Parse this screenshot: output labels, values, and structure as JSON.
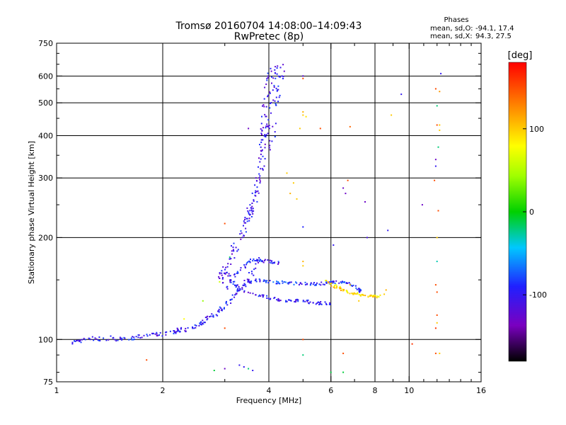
{
  "header": {
    "title_line1": "Tromsø 20160704 14:08:00–14:09:43",
    "title_line2": "RwPretec (8p)"
  },
  "phases_box": {
    "heading": "Phases",
    "o_label": "mean, sd,O:",
    "o_values": "-94.1, 17.4",
    "x_label": "mean, sd,X:",
    "x_values": "94.3, 27.5"
  },
  "colorbar": {
    "label": "[deg]",
    "range": [
      -180,
      180
    ],
    "ticks": [
      {
        "value": 100,
        "label": "100"
      },
      {
        "value": 0,
        "label": "0"
      },
      {
        "value": -100,
        "label": "-100"
      }
    ]
  },
  "chart_data": {
    "type": "scatter",
    "xlabel": "Frequency [MHz]",
    "ylabel": "Stationary phase Virtual Height [km]",
    "x_scale": "log",
    "y_scale": "log",
    "xlim": [
      1,
      16
    ],
    "ylim": [
      75,
      750
    ],
    "grid": true,
    "x_ticks": [
      {
        "value": 1,
        "label": "1"
      },
      {
        "value": 2,
        "label": "2"
      },
      {
        "value": 4,
        "label": "4"
      },
      {
        "value": 6,
        "label": "6"
      },
      {
        "value": 8,
        "label": "8"
      },
      {
        "value": 10,
        "label": "10"
      },
      {
        "value": 16,
        "label": "16"
      }
    ],
    "x_minor": [
      3,
      5,
      7,
      9,
      11,
      12,
      13,
      14,
      15
    ],
    "x_grid": [
      2,
      4,
      6,
      8,
      10
    ],
    "y_ticks": [
      {
        "value": 75,
        "label": "75"
      },
      {
        "value": 100,
        "label": "100"
      },
      {
        "value": 200,
        "label": "200"
      },
      {
        "value": 300,
        "label": "300"
      },
      {
        "value": 400,
        "label": "400"
      },
      {
        "value": 500,
        "label": "500"
      },
      {
        "value": 600,
        "label": "600"
      },
      {
        "value": 750,
        "label": "750"
      }
    ],
    "y_minor": [
      80,
      90,
      150,
      250,
      350,
      450,
      550,
      650,
      700
    ],
    "y_grid": [
      100,
      200,
      300,
      400,
      500,
      600
    ],
    "color_by": "phase_deg",
    "traces": [
      {
        "points": [
          [
            1.1,
            97
          ],
          [
            1.2,
            100
          ],
          [
            1.4,
            101
          ],
          [
            1.6,
            100
          ],
          [
            1.8,
            103
          ],
          [
            2.0,
            104
          ],
          [
            2.2,
            106
          ],
          [
            2.4,
            108
          ],
          [
            2.6,
            112
          ],
          [
            2.8,
            118
          ],
          [
            3.0,
            125
          ],
          [
            3.2,
            135
          ],
          [
            3.5,
            150
          ],
          [
            3.8,
            175
          ]
        ],
        "phase": -100,
        "jitter": 0.03
      },
      {
        "points": [
          [
            2.9,
            150
          ],
          [
            3.0,
            160
          ],
          [
            3.2,
            185
          ],
          [
            3.4,
            210
          ],
          [
            3.5,
            230
          ],
          [
            3.6,
            250
          ],
          [
            3.7,
            280
          ],
          [
            3.8,
            320
          ],
          [
            3.85,
            380
          ],
          [
            3.9,
            430
          ],
          [
            3.95,
            520
          ],
          [
            4.0,
            620
          ]
        ],
        "phase": -105,
        "jitter": 0.05
      },
      {
        "points": [
          [
            3.0,
            140
          ],
          [
            3.3,
            160
          ],
          [
            3.6,
            172
          ],
          [
            4.0,
            170
          ],
          [
            4.3,
            168
          ]
        ],
        "phase": -95,
        "jitter": 0.02
      },
      {
        "points": [
          [
            3.0,
            160
          ],
          [
            3.2,
            145
          ],
          [
            3.5,
            137
          ],
          [
            4.0,
            133
          ],
          [
            4.5,
            130
          ],
          [
            5.0,
            130
          ],
          [
            5.5,
            128
          ],
          [
            6.0,
            128
          ]
        ],
        "phase": -100,
        "jitter": 0.02
      },
      {
        "points": [
          [
            3.2,
            140
          ],
          [
            3.6,
            150
          ],
          [
            4.0,
            148
          ],
          [
            4.5,
            147
          ],
          [
            5.0,
            146
          ],
          [
            5.5,
            146
          ],
          [
            6.0,
            147
          ],
          [
            6.5,
            148
          ],
          [
            7.0,
            143
          ],
          [
            7.3,
            138
          ]
        ],
        "phase": -90,
        "jitter": 0.02
      },
      {
        "points": [
          [
            3.95,
            350
          ],
          [
            4.05,
            420
          ],
          [
            4.15,
            520
          ],
          [
            4.25,
            600
          ],
          [
            4.3,
            630
          ]
        ],
        "phase": -100,
        "jitter": 0.08
      },
      {
        "points": [
          [
            5.8,
            148
          ],
          [
            6.2,
            143
          ],
          [
            6.7,
            138
          ],
          [
            7.2,
            136
          ],
          [
            7.8,
            134
          ],
          [
            8.3,
            134
          ]
        ],
        "phase": 95,
        "jitter": 0.02
      }
    ],
    "scatter_points": [
      {
        "x": 5.0,
        "y": 460,
        "phase": 100
      },
      {
        "x": 5.0,
        "y": 470,
        "phase": 110
      },
      {
        "x": 5.1,
        "y": 455,
        "phase": 90
      },
      {
        "x": 5.0,
        "y": 165,
        "phase": 100
      },
      {
        "x": 5.0,
        "y": 170,
        "phase": 110
      },
      {
        "x": 4.9,
        "y": 420,
        "phase": 100
      },
      {
        "x": 5.6,
        "y": 420,
        "phase": 150
      },
      {
        "x": 6.8,
        "y": 425,
        "phase": 140
      },
      {
        "x": 5.0,
        "y": 600,
        "phase": -120
      },
      {
        "x": 5.0,
        "y": 590,
        "phase": 150
      },
      {
        "x": 4.7,
        "y": 290,
        "phase": 100
      },
      {
        "x": 4.6,
        "y": 270,
        "phase": 110
      },
      {
        "x": 6.5,
        "y": 280,
        "phase": -130
      },
      {
        "x": 6.6,
        "y": 270,
        "phase": -130
      },
      {
        "x": 7.5,
        "y": 255,
        "phase": -130
      },
      {
        "x": 6.7,
        "y": 295,
        "phase": 150
      },
      {
        "x": 5.0,
        "y": 215,
        "phase": -90
      },
      {
        "x": 6.1,
        "y": 190,
        "phase": -100
      },
      {
        "x": 7.6,
        "y": 200,
        "phase": -110
      },
      {
        "x": 8.7,
        "y": 210,
        "phase": -100
      },
      {
        "x": 9.5,
        "y": 530,
        "phase": -100
      },
      {
        "x": 8.9,
        "y": 460,
        "phase": 100
      },
      {
        "x": 10.9,
        "y": 250,
        "phase": -130
      },
      {
        "x": 12.3,
        "y": 610,
        "phase": -100
      },
      {
        "x": 11.9,
        "y": 550,
        "phase": 150
      },
      {
        "x": 12.2,
        "y": 540,
        "phase": 120
      },
      {
        "x": 12.0,
        "y": 490,
        "phase": -20
      },
      {
        "x": 12.0,
        "y": 430,
        "phase": 150
      },
      {
        "x": 12.2,
        "y": 430,
        "phase": 100
      },
      {
        "x": 12.2,
        "y": 415,
        "phase": 100
      },
      {
        "x": 12.1,
        "y": 370,
        "phase": -20
      },
      {
        "x": 11.9,
        "y": 340,
        "phase": -130
      },
      {
        "x": 11.9,
        "y": 325,
        "phase": -100
      },
      {
        "x": 11.8,
        "y": 295,
        "phase": 150
      },
      {
        "x": 12.1,
        "y": 240,
        "phase": 150
      },
      {
        "x": 12.0,
        "y": 200,
        "phase": 100
      },
      {
        "x": 12.0,
        "y": 170,
        "phase": -30
      },
      {
        "x": 11.9,
        "y": 145,
        "phase": 150
      },
      {
        "x": 12.0,
        "y": 138,
        "phase": 150
      },
      {
        "x": 12.0,
        "y": 118,
        "phase": 150
      },
      {
        "x": 12.0,
        "y": 112,
        "phase": 100
      },
      {
        "x": 11.9,
        "y": 108,
        "phase": 160
      },
      {
        "x": 11.9,
        "y": 91,
        "phase": 150
      },
      {
        "x": 12.2,
        "y": 91,
        "phase": 100
      },
      {
        "x": 10.2,
        "y": 97,
        "phase": 160
      },
      {
        "x": 6.5,
        "y": 91,
        "phase": 150
      },
      {
        "x": 6.0,
        "y": 80,
        "phase": -10
      },
      {
        "x": 6.5,
        "y": 80,
        "phase": -10
      },
      {
        "x": 5.0,
        "y": 90,
        "phase": -20
      },
      {
        "x": 5.0,
        "y": 100,
        "phase": 150
      },
      {
        "x": 3.0,
        "y": 82,
        "phase": -130
      },
      {
        "x": 2.8,
        "y": 81,
        "phase": -10
      },
      {
        "x": 3.3,
        "y": 84,
        "phase": -100
      },
      {
        "x": 3.4,
        "y": 83,
        "phase": -100
      },
      {
        "x": 3.5,
        "y": 82,
        "phase": -20
      },
      {
        "x": 3.6,
        "y": 81,
        "phase": -100
      },
      {
        "x": 1.8,
        "y": 87,
        "phase": 150
      },
      {
        "x": 3.0,
        "y": 108,
        "phase": 150
      },
      {
        "x": 3.0,
        "y": 220,
        "phase": 150
      },
      {
        "x": 3.5,
        "y": 420,
        "phase": -130
      },
      {
        "x": 8.5,
        "y": 136,
        "phase": 100
      },
      {
        "x": 8.6,
        "y": 140,
        "phase": 110
      },
      {
        "x": 7.2,
        "y": 130,
        "phase": 100
      },
      {
        "x": 6.8,
        "y": 145,
        "phase": 110
      },
      {
        "x": 2.3,
        "y": 115,
        "phase": 80
      },
      {
        "x": 2.6,
        "y": 130,
        "phase": 40
      },
      {
        "x": 2.9,
        "y": 148,
        "phase": 60
      },
      {
        "x": 3.1,
        "y": 175,
        "phase": -20
      },
      {
        "x": 4.5,
        "y": 310,
        "phase": 100
      },
      {
        "x": 4.8,
        "y": 260,
        "phase": 100
      }
    ]
  }
}
